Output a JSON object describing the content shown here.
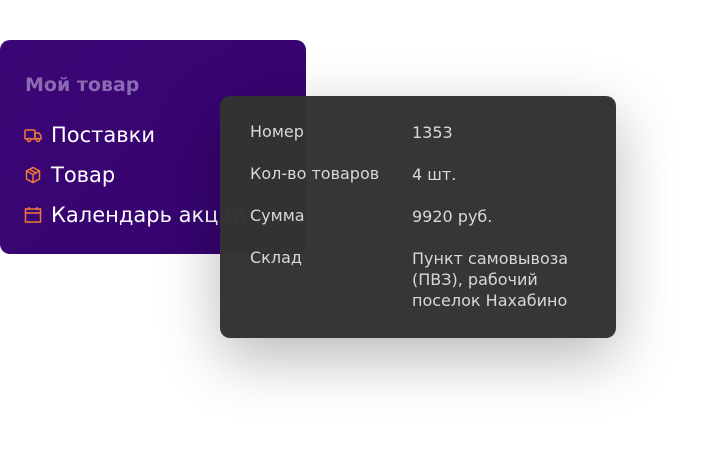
{
  "menu": {
    "title": "Мой товар",
    "items": [
      {
        "label": "Поставки",
        "icon": "truck-icon"
      },
      {
        "label": "Товар",
        "icon": "box-icon"
      },
      {
        "label": "Календарь акций",
        "icon": "calendar-icon"
      }
    ],
    "icon_color": "#f07a3a"
  },
  "tooltip": {
    "rows": [
      {
        "label": "Номер",
        "value": "1353"
      },
      {
        "label": "Кол-во товаров",
        "value": "4 шт."
      },
      {
        "label": "Сумма",
        "value": "9920 руб."
      },
      {
        "label": "Склад",
        "value": "Пункт самовывоза (ПВЗ), рабочий поселок Нахабино"
      }
    ]
  }
}
